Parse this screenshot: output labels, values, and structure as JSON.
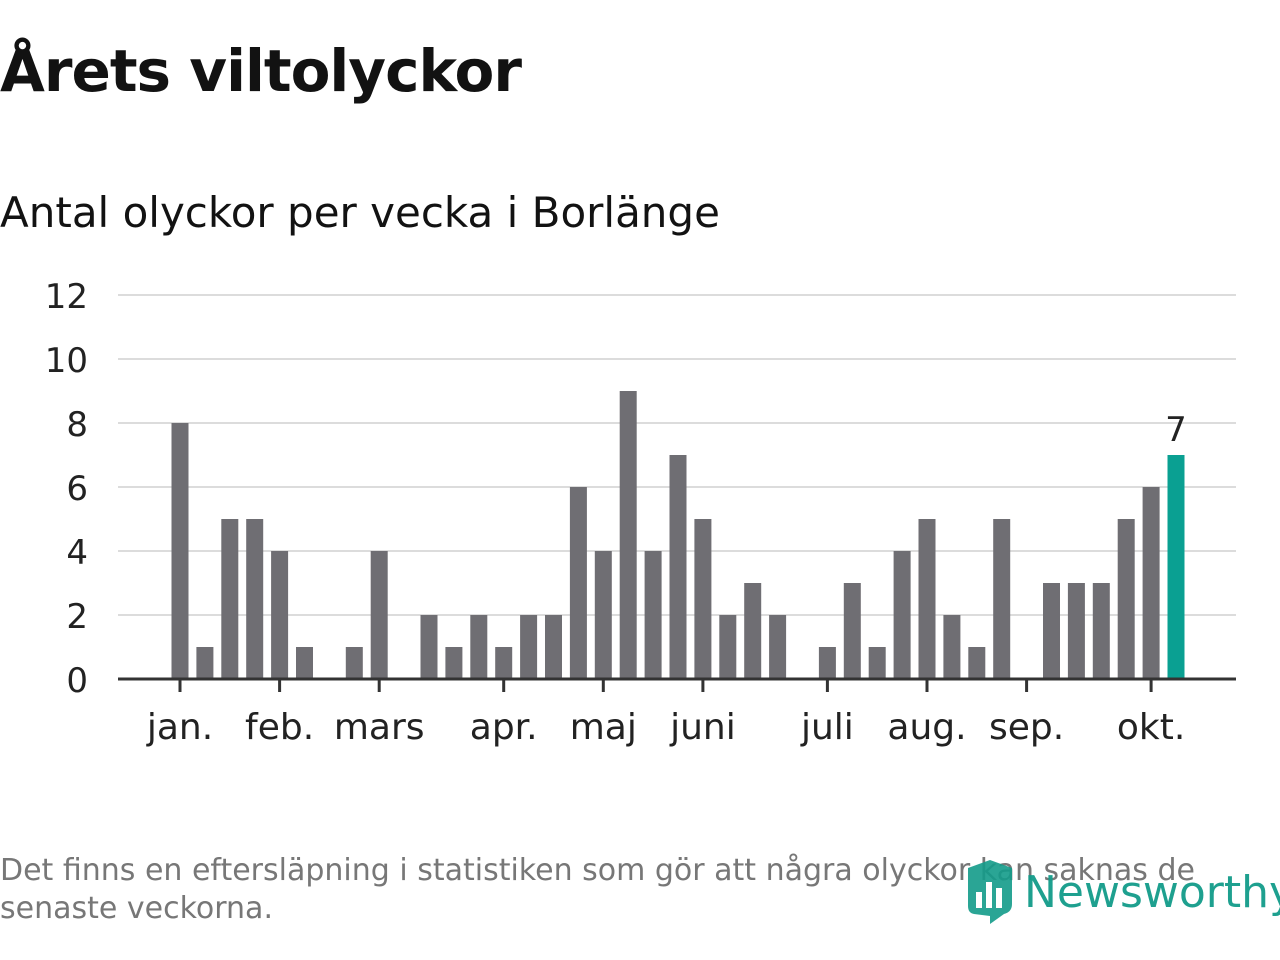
{
  "title": "Årets viltolyckor",
  "subtitle": "Antal olyckor per vecka i Borlänge",
  "footnote": "Det finns en eftersläpning i statistiken som gör att några olyckor kan saknas de senaste veckorna.",
  "brand": {
    "name": "Newsworthy",
    "icon": "newsworthy-logo-icon"
  },
  "colors": {
    "bar": "#6f6e73",
    "highlight": "#0aa092",
    "grid": "#dcdcdc",
    "axis": "#333333"
  },
  "chart_data": {
    "type": "bar",
    "title": "Antal olyckor per vecka i Borlänge",
    "ylim": [
      0,
      12
    ],
    "yticks": [
      0,
      2,
      4,
      6,
      8,
      10,
      12
    ],
    "grid": true,
    "legend": "none",
    "values": [
      8,
      1,
      5,
      5,
      4,
      1,
      0,
      1,
      4,
      0,
      2,
      1,
      2,
      1,
      2,
      2,
      6,
      4,
      9,
      4,
      7,
      5,
      2,
      3,
      2,
      0,
      1,
      3,
      1,
      4,
      5,
      2,
      1,
      5,
      0,
      3,
      3,
      3,
      5,
      6,
      7
    ],
    "highlight_index": 40,
    "highlight_label": "7",
    "month_labels": [
      {
        "label": "jan.",
        "index": 0
      },
      {
        "label": "feb.",
        "index": 4
      },
      {
        "label": "mars",
        "index": 8
      },
      {
        "label": "apr.",
        "index": 13
      },
      {
        "label": "maj",
        "index": 17
      },
      {
        "label": "juni",
        "index": 21
      },
      {
        "label": "juli",
        "index": 26
      },
      {
        "label": "aug.",
        "index": 30
      },
      {
        "label": "sep.",
        "index": 34
      },
      {
        "label": "okt.",
        "index": 39
      }
    ]
  }
}
